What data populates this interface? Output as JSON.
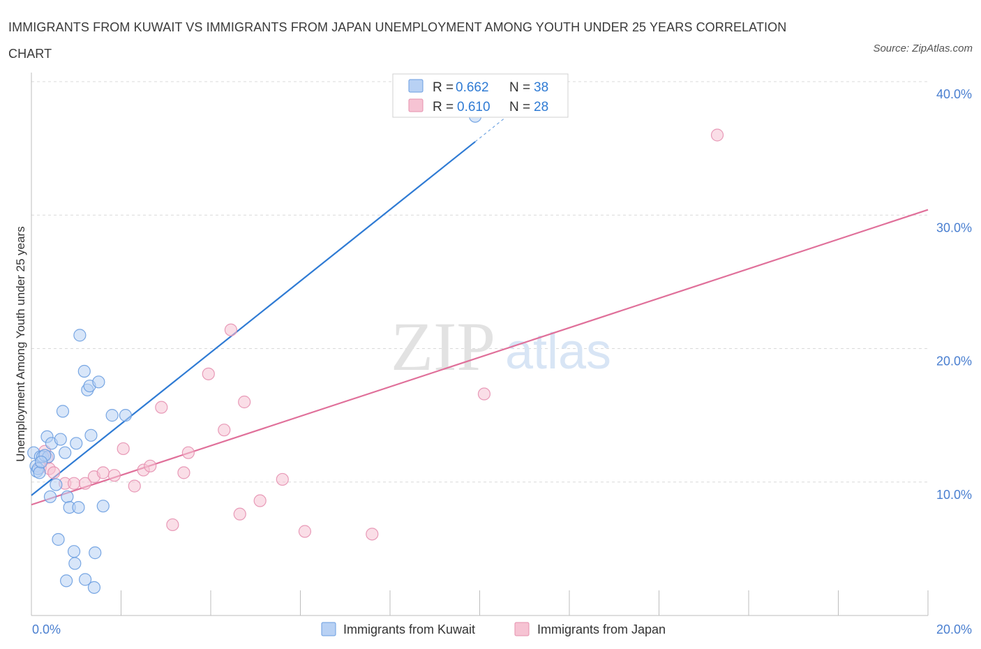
{
  "title": "IMMIGRANTS FROM KUWAIT VS IMMIGRANTS FROM JAPAN UNEMPLOYMENT AMONG YOUTH UNDER 25 YEARS CORRELATION CHART",
  "source": "Source: ZipAtlas.com",
  "watermark": {
    "zip": "ZIP",
    "atlas": "atlas"
  },
  "colors": {
    "kuwait": "#2f7bd4",
    "kuwait_fill": "#b8d1f4",
    "japan": "#e0709a",
    "japan_fill": "#f6c3d3",
    "tick_label": "#4a7fd0",
    "grid": "#d9d9d9"
  },
  "legend_top": {
    "kuwait": {
      "r_label": "R = ",
      "r_value": "0.662",
      "n_label": "N = ",
      "n_value": "38"
    },
    "japan": {
      "r_label": "R = ",
      "r_value": "0.610",
      "n_label": "N = ",
      "n_value": "28"
    }
  },
  "chart_data": {
    "type": "scatter",
    "title": "IMMIGRANTS FROM KUWAIT VS IMMIGRANTS FROM JAPAN UNEMPLOYMENT AMONG YOUTH UNDER 25 YEARS CORRELATION CHART",
    "xlabel": "",
    "ylabel": "Unemployment Among Youth under 25 years",
    "xlim": [
      0,
      20
    ],
    "ylim": [
      0,
      40
    ],
    "x_tick_labels": [
      {
        "value": 0,
        "label": "0.0%"
      },
      {
        "value": 20,
        "label": "20.0%"
      }
    ],
    "y_tick_labels": [
      {
        "value": 10,
        "label": "10.0%"
      },
      {
        "value": 20,
        "label": "20.0%"
      },
      {
        "value": 30,
        "label": "30.0%"
      },
      {
        "value": 40,
        "label": "40.0%"
      }
    ],
    "series": [
      {
        "name": "Immigrants from Kuwait",
        "color": "#2f7bd4",
        "R": 0.662,
        "N": 38,
        "points": [
          [
            0.05,
            12.2
          ],
          [
            0.1,
            11.2
          ],
          [
            0.12,
            10.8
          ],
          [
            0.15,
            11.0
          ],
          [
            0.18,
            10.7
          ],
          [
            0.2,
            11.9
          ],
          [
            0.25,
            11.9
          ],
          [
            0.35,
            13.4
          ],
          [
            0.38,
            11.9
          ],
          [
            0.45,
            12.9
          ],
          [
            0.42,
            8.9
          ],
          [
            0.55,
            9.8
          ],
          [
            0.6,
            5.7
          ],
          [
            0.65,
            13.2
          ],
          [
            0.7,
            15.3
          ],
          [
            0.75,
            12.2
          ],
          [
            0.78,
            2.6
          ],
          [
            0.8,
            8.9
          ],
          [
            0.85,
            8.1
          ],
          [
            0.95,
            4.8
          ],
          [
            0.97,
            3.9
          ],
          [
            1.0,
            12.9
          ],
          [
            1.05,
            8.1
          ],
          [
            1.08,
            21.0
          ],
          [
            1.18,
            18.3
          ],
          [
            1.2,
            2.7
          ],
          [
            1.25,
            16.9
          ],
          [
            1.3,
            17.2
          ],
          [
            1.33,
            13.5
          ],
          [
            1.42,
            4.7
          ],
          [
            1.4,
            2.1
          ],
          [
            1.5,
            17.5
          ],
          [
            1.6,
            8.2
          ],
          [
            1.8,
            15.0
          ],
          [
            2.1,
            15.0
          ],
          [
            9.9,
            37.4
          ],
          [
            0.3,
            12.0
          ],
          [
            0.22,
            11.5
          ]
        ],
        "trendline": {
          "x0": 0.0,
          "y0": 9.0,
          "x1": 9.9,
          "y1": 35.5,
          "dashed_to_x": 11.2,
          "dashed_to_y": 39.0
        }
      },
      {
        "name": "Immigrants from Japan",
        "color": "#e0709a",
        "R": 0.61,
        "N": 28,
        "points": [
          [
            0.2,
            11.1
          ],
          [
            0.3,
            12.3
          ],
          [
            0.35,
            11.8
          ],
          [
            0.4,
            11.0
          ],
          [
            0.5,
            10.7
          ],
          [
            0.75,
            9.9
          ],
          [
            0.95,
            9.9
          ],
          [
            1.2,
            9.9
          ],
          [
            1.4,
            10.4
          ],
          [
            1.6,
            10.7
          ],
          [
            1.85,
            10.5
          ],
          [
            2.05,
            12.5
          ],
          [
            2.3,
            9.7
          ],
          [
            2.5,
            10.9
          ],
          [
            2.65,
            11.2
          ],
          [
            2.9,
            15.6
          ],
          [
            3.15,
            6.8
          ],
          [
            3.4,
            10.7
          ],
          [
            3.5,
            12.2
          ],
          [
            3.95,
            18.1
          ],
          [
            4.3,
            13.9
          ],
          [
            4.45,
            21.4
          ],
          [
            4.65,
            7.6
          ],
          [
            4.75,
            16.0
          ],
          [
            5.1,
            8.6
          ],
          [
            5.6,
            10.2
          ],
          [
            6.1,
            6.3
          ],
          [
            7.6,
            6.1
          ]
        ],
        "extra_points": [
          [
            10.1,
            16.6
          ],
          [
            15.3,
            36.0
          ]
        ],
        "trendline": {
          "x0": 0.0,
          "y0": 8.3,
          "x1": 20.0,
          "y1": 30.4
        }
      }
    ],
    "legend": [
      "Immigrants from Kuwait",
      "Immigrants from Japan"
    ]
  }
}
